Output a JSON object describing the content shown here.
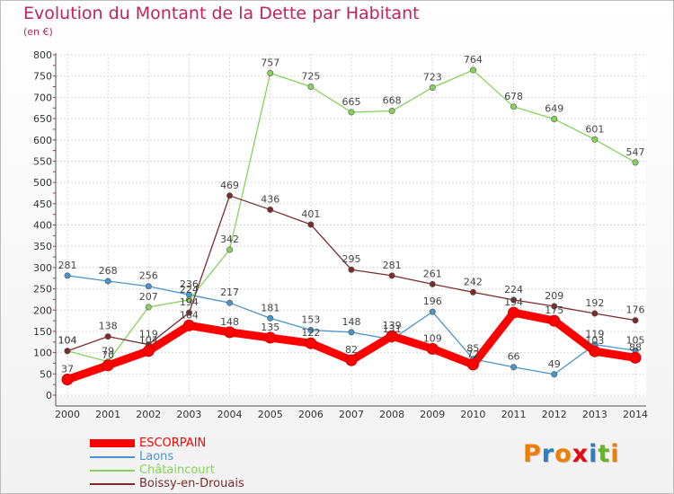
{
  "title": "Evolution du Montant de la Dette par Habitant",
  "subtitle": "(en €)",
  "logo_text": "Proxiti",
  "logo_colors": [
    "#f07d00",
    "#2a7fc1",
    "#f07d00",
    "#e30613",
    "#2a7fc1",
    "#67b32e",
    "#f07d00"
  ],
  "chart_data": {
    "type": "line",
    "title": "Evolution du Montant de la Dette par Habitant",
    "subtitle": "(en €)",
    "x": [
      "2000",
      "2001",
      "2002",
      "2003",
      "2004",
      "2005",
      "2006",
      "2007",
      "2008",
      "2009",
      "2010",
      "2011",
      "2012",
      "2013",
      "2014"
    ],
    "yticks": [
      "0",
      "50",
      "100",
      "150",
      "200",
      "250",
      "300",
      "350",
      "400",
      "450",
      "500",
      "550",
      "600",
      "650",
      "700",
      "750",
      "800"
    ],
    "ylim": [
      0,
      800
    ],
    "grid": true,
    "legend_position": "bottom-left",
    "series": [
      {
        "name": "ESCORPAIN",
        "color": "#ff0000",
        "values": [
          37,
          70,
          104,
          164,
          148,
          135,
          122,
          82,
          139,
          109,
          72,
          194,
          175,
          103,
          88
        ]
      },
      {
        "name": "Laons",
        "color": "#4a94cc",
        "values": [
          281,
          268,
          256,
          236,
          217,
          181,
          153,
          148,
          131,
          196,
          85,
          66,
          49,
          119,
          105
        ]
      },
      {
        "name": "Châtaincourt",
        "color": "#85d35b",
        "values": [
          104,
          79,
          207,
          224,
          342,
          757,
          725,
          665,
          668,
          723,
          764,
          678,
          649,
          601,
          547
        ]
      },
      {
        "name": "Boissy-en-Drouais",
        "color": "#7a2b2b",
        "values": [
          104,
          138,
          119,
          194,
          469,
          436,
          401,
          295,
          281,
          261,
          242,
          224,
          209,
          192,
          176
        ]
      }
    ]
  }
}
